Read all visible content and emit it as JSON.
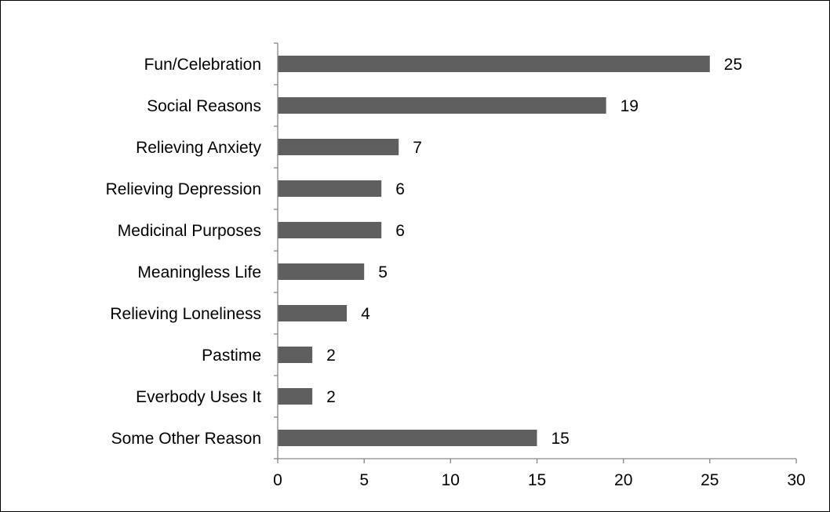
{
  "chart_data": {
    "type": "bar",
    "orientation": "horizontal",
    "title": "",
    "xlabel": "",
    "ylabel": "",
    "categories": [
      "Fun/Celebration",
      "Social Reasons",
      "Relieving Anxiety",
      "Relieving Depression",
      "Medicinal Purposes",
      "Meaningless Life",
      "Relieving Loneliness",
      "Pastime",
      "Everbody Uses It",
      "Some Other Reason"
    ],
    "values": [
      25,
      19,
      7,
      6,
      6,
      5,
      4,
      2,
      2,
      15
    ],
    "xlim": [
      0,
      30
    ],
    "x_ticks": [
      0,
      5,
      10,
      15,
      20,
      25,
      30
    ],
    "x_tick_labels": [
      "0",
      "5",
      "10",
      "15",
      "20",
      "25",
      "30"
    ],
    "grid": false,
    "legend": "none",
    "data_labels": true,
    "bar_color": "#5f5f5f",
    "axis_color": "#868686"
  }
}
